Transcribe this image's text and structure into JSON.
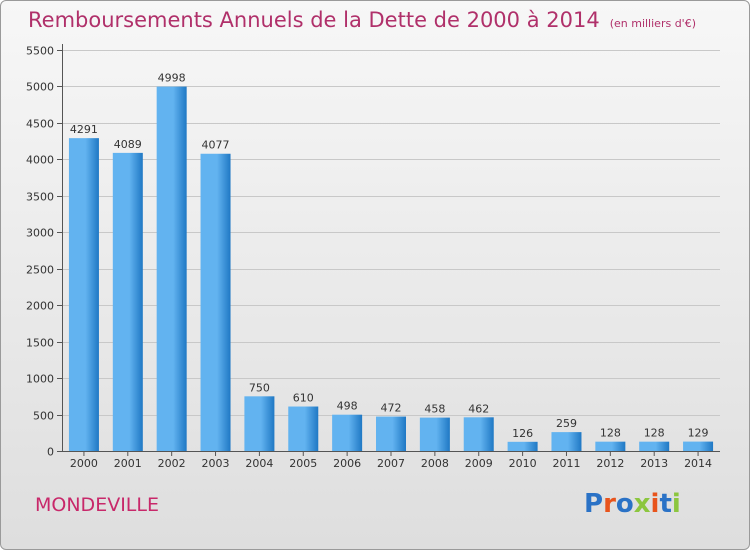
{
  "title": "Remboursements Annuels de la Dette de 2000 à 2014",
  "unit_note": "(en milliers d'€)",
  "city": "MONDEVILLE",
  "logo": {
    "text": "Proxiti",
    "colors": [
      "#2a72c6",
      "#e8541c",
      "#2a72c6",
      "#8cc63f",
      "#e8541c",
      "#2a72c6",
      "#8cc63f"
    ]
  },
  "colors": {
    "title": "#b0306a",
    "bar_light": "#62b3f0",
    "bar_dark": "#1f78c4",
    "grid": "#c8c8c8"
  },
  "chart_data": {
    "type": "bar",
    "title": "Remboursements Annuels de la Dette de 2000 à 2014",
    "categories": [
      "2000",
      "2001",
      "2002",
      "2003",
      "2004",
      "2005",
      "2006",
      "2007",
      "2008",
      "2009",
      "2010",
      "2011",
      "2012",
      "2013",
      "2014"
    ],
    "values": [
      4291,
      4089,
      4998,
      4077,
      750,
      610,
      498,
      472,
      458,
      462,
      126,
      259,
      128,
      128,
      129
    ],
    "ylim": [
      0,
      5500
    ],
    "yticks": [
      0,
      500,
      1000,
      1500,
      2000,
      2500,
      3000,
      3500,
      4000,
      4500,
      5000,
      5500
    ],
    "grid": true
  }
}
